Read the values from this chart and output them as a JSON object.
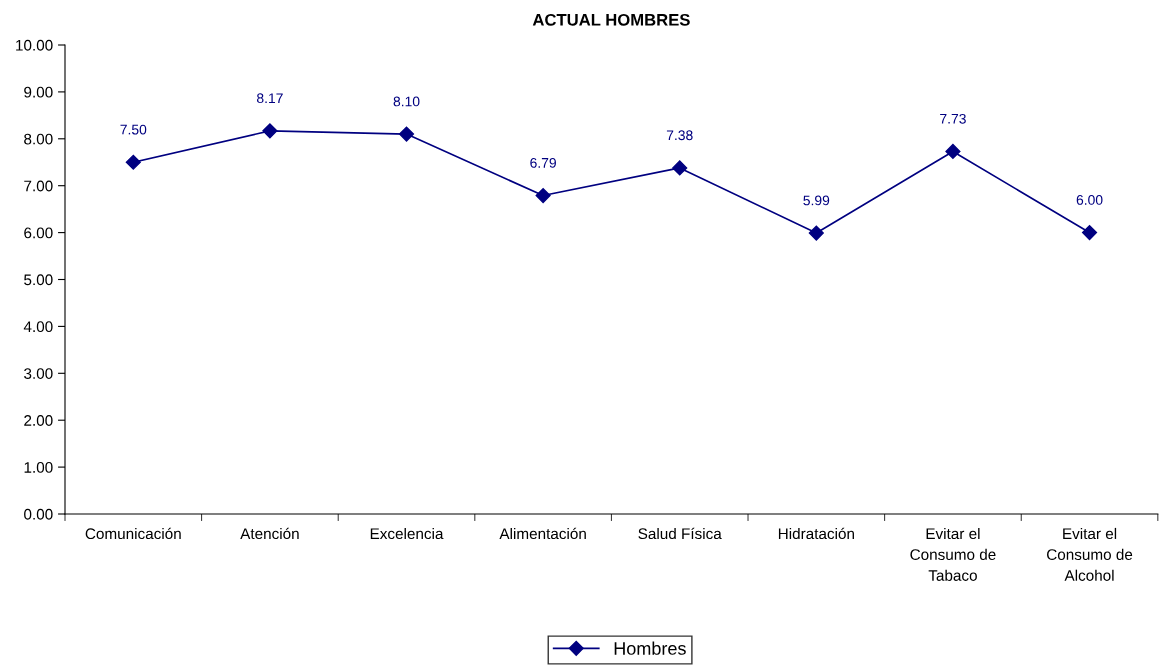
{
  "chart_data": {
    "type": "line",
    "title": "ACTUAL HOMBRES",
    "categories": [
      "Comunicación",
      "Atención",
      "Excelencia",
      "Alimentación",
      "Salud Física",
      "Hidratación",
      "Evitar el\nConsumo de\nTabaco",
      "Evitar el\nConsumo de\nAlcohol"
    ],
    "series": [
      {
        "name": "Hombres",
        "color": "#000080",
        "values": [
          7.5,
          8.17,
          8.1,
          6.79,
          7.38,
          5.99,
          7.73,
          6.0
        ],
        "value_labels": [
          "7.50",
          "8.17",
          "8.10",
          "6.79",
          "7.38",
          "5.99",
          "7.73",
          "6.00"
        ]
      }
    ],
    "ylim": [
      0,
      10
    ],
    "yticks": [
      {
        "value": 0,
        "label": "0.00"
      },
      {
        "value": 1,
        "label": "1.00"
      },
      {
        "value": 2,
        "label": "2.00"
      },
      {
        "value": 3,
        "label": "3.00"
      },
      {
        "value": 4,
        "label": "4.00"
      },
      {
        "value": 5,
        "label": "5.00"
      },
      {
        "value": 6,
        "label": "6.00"
      },
      {
        "value": 7,
        "label": "7.00"
      },
      {
        "value": 8,
        "label": "8.00"
      },
      {
        "value": 9,
        "label": "9.00"
      },
      {
        "value": 10,
        "label": "10.00"
      }
    ],
    "marker": "diamond",
    "line_style": "solid",
    "legend": "bottom",
    "grid": false
  }
}
